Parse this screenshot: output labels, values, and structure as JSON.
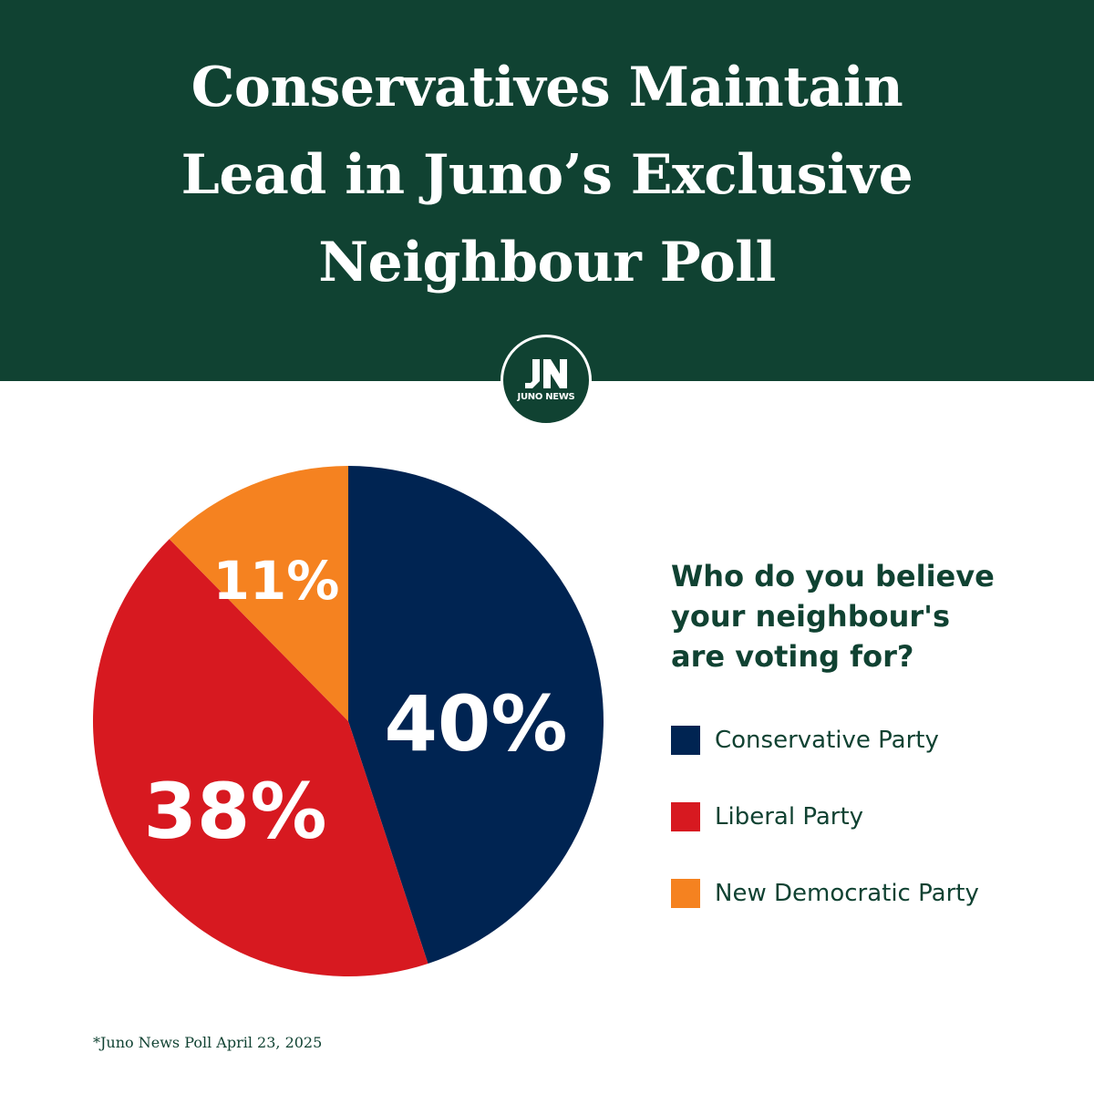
{
  "header": {
    "title_lines": [
      "Conservatives Maintain",
      "Lead in Juno’s Exclusive",
      "Neighbour Poll"
    ],
    "background": "#104232"
  },
  "logo": {
    "mark": "JN",
    "text": "JUNO NEWS"
  },
  "chart_data": {
    "type": "pie",
    "title": "Who do you believe your neighbour's are voting for?",
    "title_lines": [
      "Who do you believe",
      "your neighbour's",
      "are voting for?"
    ],
    "categories": [
      "Conservative Party",
      "Liberal Party",
      "New Democratic Party"
    ],
    "values": [
      40,
      38,
      11
    ],
    "labels": [
      "40%",
      "38%",
      "11%"
    ],
    "colors": [
      "#002452",
      "#d71920",
      "#f58220"
    ],
    "legend_placement": "right",
    "start": "top",
    "direction": "clockwise"
  },
  "footnote": "*Juno News Poll April 23, 2025"
}
